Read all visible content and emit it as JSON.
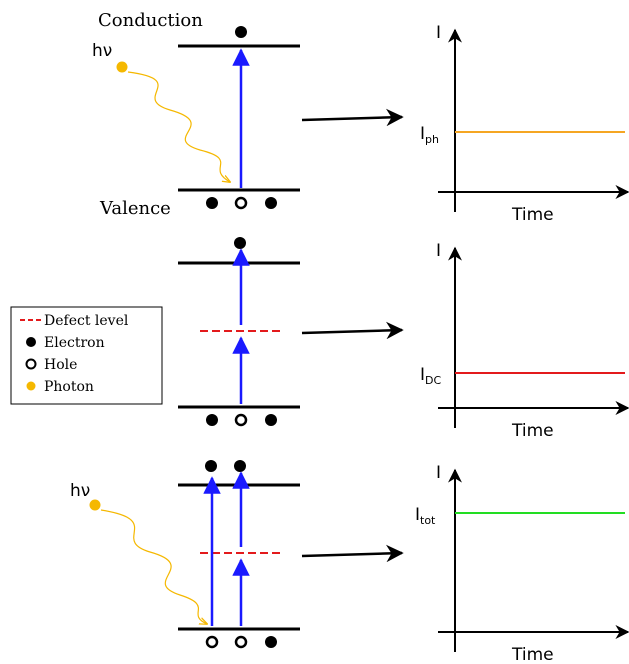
{
  "colors": {
    "electron": "#000000",
    "hole_fill": "#ffffff",
    "photon": "#f5b800",
    "transition_arrow": "#1a1aff",
    "defect_level": "#e31a1c",
    "photocurrent_line": "#f5a623",
    "dark_current_line": "#e31a1c",
    "total_current_line": "#22dd22"
  },
  "panel_top": {
    "conduction_label": "Conduction",
    "valence_label": "Valence",
    "photon_label": "hν"
  },
  "panel_bottom": {
    "photon_label": "hν"
  },
  "legend": {
    "items": [
      {
        "symbol": "defect-line",
        "label": "Defect level"
      },
      {
        "symbol": "electron",
        "label": "Electron"
      },
      {
        "symbol": "hole",
        "label": "Hole"
      },
      {
        "symbol": "photon",
        "label": "Photon"
      }
    ]
  },
  "graphs": [
    {
      "y_axis_label": "I",
      "x_axis_label": "Time",
      "level_main": "I",
      "level_sub": "ph",
      "series_color_key": "photocurrent_line"
    },
    {
      "y_axis_label": "I",
      "x_axis_label": "Time",
      "level_main": "I",
      "level_sub": "DC",
      "series_color_key": "dark_current_line"
    },
    {
      "y_axis_label": "I",
      "x_axis_label": "Time",
      "level_main": "I",
      "level_sub": "tot",
      "series_color_key": "total_current_line"
    }
  ]
}
